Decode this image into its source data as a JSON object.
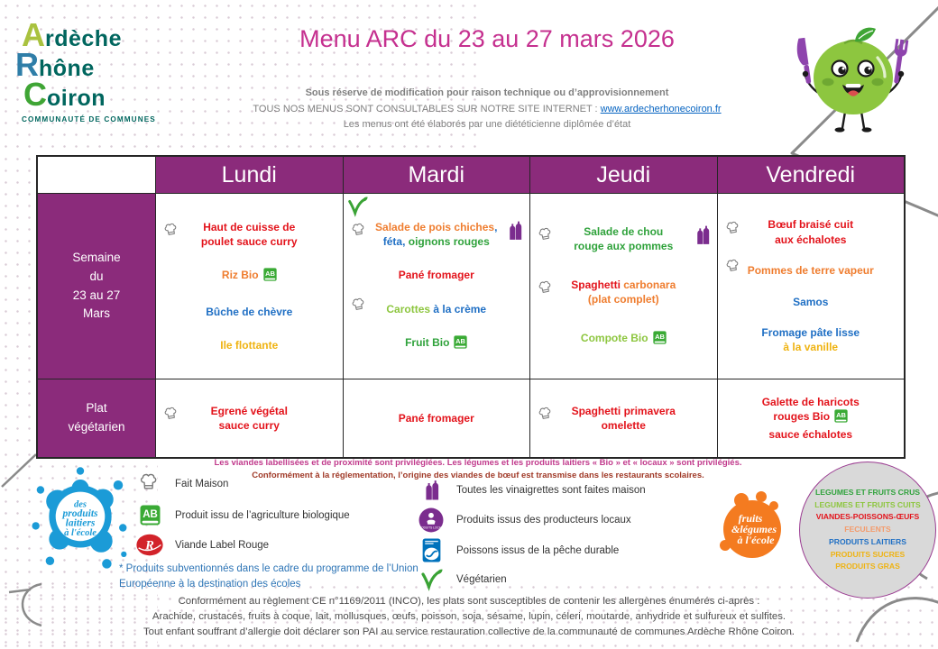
{
  "palette": {
    "purple": "#8B2B7B",
    "title_magenta": "#C5308F",
    "red": "#E3131B",
    "orange": "#EF7D2F",
    "blue": "#1F6FC4",
    "green": "#2FA23B",
    "light_green": "#8DC63F",
    "yellow": "#EFB311",
    "link_blue": "#0563C1",
    "notice_magenta": "#C13A8C",
    "notice_dark_red": "#A03A28",
    "footer_gray": "#4D4D4D",
    "bio_green": "#3AAA35",
    "label_rouge_red": "#D2232A",
    "vinaigrette_purple": "#7B2D8E",
    "msc_blue": "#0072BC",
    "dairy_blue": "#1B9BD7",
    "fruits_orange": "#F47B20",
    "circle_gray": "#D9D9D9"
  },
  "logo": {
    "rows": [
      {
        "initial": "A",
        "rest": "rdèche"
      },
      {
        "initial": "R",
        "rest": "hône"
      },
      {
        "initial": "C",
        "rest": "oiron"
      }
    ],
    "tagline": "COMMUNAUTÉ DE COMMUNES"
  },
  "header": {
    "title": "Menu ARC du 23 au 27 mars 2026",
    "note_bold": "Sous réserve de modification pour raison technique ou d’approvisionnement",
    "consult_prefix": "TOUS NOS MENUS SONT CONSULTABLES SUR NOTRE SITE INTERNET : ",
    "consult_link": "www.ardecherhonecoiron.fr",
    "dietitian_line": "Les menus ont été élaborés par une diététicienne diplômée d’état"
  },
  "table": {
    "days": [
      "Lundi",
      "Mardi",
      "Jeudi",
      "Vendredi"
    ],
    "rows": [
      {
        "id": "semaine",
        "label_lines": [
          "Semaine",
          "du",
          "23 au 27",
          "Mars"
        ],
        "cells": [
          {
            "items": [
              {
                "hat": true,
                "lines": [
                  [
                    {
                      "t": "Haut de cuisse de",
                      "c": "red"
                    }
                  ],
                  [
                    {
                      "t": "poulet sauce curry",
                      "c": "red"
                    }
                  ]
                ]
              },
              {
                "lines": [
                  [
                    {
                      "t": "Riz Bio",
                      "c": "orange"
                    },
                    {
                      "icon": "ab"
                    }
                  ]
                ]
              },
              {
                "lines": [
                  [
                    {
                      "t": "Bûche de chèvre",
                      "c": "blue"
                    }
                  ]
                ]
              },
              {
                "lines": [
                  [
                    {
                      "t": "Ile flottante",
                      "c": "yellow"
                    }
                  ]
                ]
              }
            ]
          },
          {
            "corner_icon": "veg",
            "items": [
              {
                "hat": true,
                "trail": "bottles",
                "lines": [
                  [
                    {
                      "t": "Salade de pois chiches",
                      "c": "orange"
                    },
                    {
                      "t": ",",
                      "c": "blue"
                    }
                  ],
                  [
                    {
                      "t": "féta,",
                      "c": "blue"
                    },
                    {
                      "t": " oignons rouges",
                      "c": "green"
                    }
                  ]
                ]
              },
              {
                "lines": [
                  [
                    {
                      "t": "Pané fromager",
                      "c": "red"
                    }
                  ]
                ]
              },
              {
                "hat": true,
                "lines": [
                  [
                    {
                      "t": "Carottes ",
                      "c": "lgreen"
                    },
                    {
                      "t": "à la crème",
                      "c": "blue"
                    }
                  ]
                ]
              },
              {
                "lines": [
                  [
                    {
                      "t": "Fruit Bio",
                      "c": "green"
                    },
                    {
                      "icon": "ab"
                    }
                  ]
                ]
              }
            ]
          },
          {
            "items": [
              {
                "hat": true,
                "trail": "bottles",
                "lines": [
                  [
                    {
                      "t": "Salade de chou",
                      "c": "green"
                    }
                  ],
                  [
                    {
                      "t": "rouge aux pommes",
                      "c": "green"
                    }
                  ]
                ]
              },
              {
                "hat": true,
                "lines": [
                  [
                    {
                      "t": "Spaghetti",
                      "c": "red"
                    },
                    {
                      "t": " carbonara",
                      "c": "orange"
                    }
                  ],
                  [
                    {
                      "t": "(plat complet)",
                      "c": "orange"
                    }
                  ]
                ]
              },
              {
                "lines": [
                  [
                    {
                      "t": "Compote Bio",
                      "c": "lgreen"
                    },
                    {
                      "icon": "ab"
                    }
                  ]
                ]
              }
            ]
          },
          {
            "items": [
              {
                "hat": true,
                "lines": [
                  [
                    {
                      "t": "Bœuf braisé cuit",
                      "c": "red"
                    }
                  ],
                  [
                    {
                      "t": "aux échalotes",
                      "c": "red"
                    }
                  ]
                ]
              },
              {
                "hat": true,
                "lines": [
                  [
                    {
                      "t": "Pommes de terre vapeur",
                      "c": "orange"
                    }
                  ]
                ]
              },
              {
                "lines": [
                  [
                    {
                      "t": "Samos",
                      "c": "blue"
                    }
                  ]
                ]
              },
              {
                "lines": [
                  [
                    {
                      "t": "Fromage pâte lisse",
                      "c": "blue"
                    }
                  ],
                  [
                    {
                      "t": "à la vanille",
                      "c": "yellow"
                    }
                  ]
                ]
              }
            ]
          }
        ]
      },
      {
        "id": "veg",
        "label_lines": [
          "Plat",
          "végétarien"
        ],
        "cells": [
          {
            "items": [
              {
                "hat": true,
                "lines": [
                  [
                    {
                      "t": "Egrené végétal",
                      "c": "red"
                    }
                  ],
                  [
                    {
                      "t": "sauce curry",
                      "c": "red"
                    }
                  ]
                ]
              }
            ]
          },
          {
            "items": [
              {
                "lines": [
                  [
                    {
                      "t": "Pané fromager",
                      "c": "red"
                    }
                  ]
                ]
              }
            ]
          },
          {
            "items": [
              {
                "hat": true,
                "lines": [
                  [
                    {
                      "t": "Spaghetti primavera",
                      "c": "red"
                    }
                  ],
                  [
                    {
                      "t": "omelette",
                      "c": "red"
                    }
                  ]
                ]
              }
            ]
          },
          {
            "items": [
              {
                "lines": [
                  [
                    {
                      "t": "Galette de haricots",
                      "c": "red"
                    }
                  ],
                  [
                    {
                      "t": "rouges Bio",
                      "c": "red"
                    },
                    {
                      "icon": "ab"
                    }
                  ],
                  [
                    {
                      "t": "sauce échalotes",
                      "c": "red"
                    }
                  ]
                ]
              }
            ]
          }
        ]
      }
    ]
  },
  "legend": {
    "notice_line1": "Les viandes labellisées et de proximité sont privilégiées. Les légumes et les produits laitiers « Bio » et « locaux » sont privilégiés.",
    "notice_line2": "Conformément à la réglementation, l’origine des viandes de bœuf est transmise dans les restaurants scolaires.",
    "left": [
      {
        "icon": "hat",
        "label": "Fait Maison"
      },
      {
        "icon": "ab",
        "label": "Produit issu de l’agriculture biologique"
      },
      {
        "icon": "labelrouge",
        "label": "Viande Label Rouge"
      }
    ],
    "left_note": "* Produits subventionnés dans le cadre du programme de l’Union Européenne à la destination des écoles",
    "right": [
      {
        "icon": "bottles",
        "label": "Toutes les vinaigrettes sont faites maison"
      },
      {
        "icon": "locaux",
        "label": "Produits issus des producteurs locaux"
      },
      {
        "icon": "msc",
        "label": "Poissons  issus de la pêche durable"
      },
      {
        "icon": "veg",
        "label": "Végétarien"
      }
    ]
  },
  "categories_circle": {
    "entries": [
      {
        "t": "LEGUMES ET FRUITS CRUS",
        "c": "green"
      },
      {
        "t": "LEGUMES ET FRUITS CUITS",
        "c": "lgreen"
      },
      {
        "t": "VIANDES-POISSONS-ŒUFS",
        "c": "red"
      },
      {
        "t": "FECULENTS",
        "c": "salmon"
      },
      {
        "t": "PRODUITS LAITIERS",
        "c": "blue"
      },
      {
        "t": "PRODUITS SUCRES",
        "c": "yellow"
      },
      {
        "t": "PRODUITS GRAS",
        "c": "yellow"
      }
    ]
  },
  "badges": {
    "dairy_lines": [
      "des",
      "produits",
      "laitiers",
      "à l'école"
    ],
    "fruits_lines": [
      "fruits",
      "&légumes",
      "à l'école"
    ]
  },
  "icons": {
    "ab_text": "AB",
    "label_rouge_text": "R",
    "local_label": "PRODUITS LOCAUX"
  },
  "footer": {
    "line1": "Conformément au règlement CE n°1169/2011 (INCO), les plats sont susceptibles de contenir les allergènes énumérés ci-après :",
    "line2": "Arachide, crustacés, fruits à coque, lait, mollusques, œufs, poisson, soja, sésame, lupin, céleri, moutarde, anhydride et sulfureux et sulfites.",
    "line3": "Tout enfant souffrant d’allergie doit déclarer son PAI au service restauration collective de la communauté de communes Ardèche Rhône Coiron."
  }
}
